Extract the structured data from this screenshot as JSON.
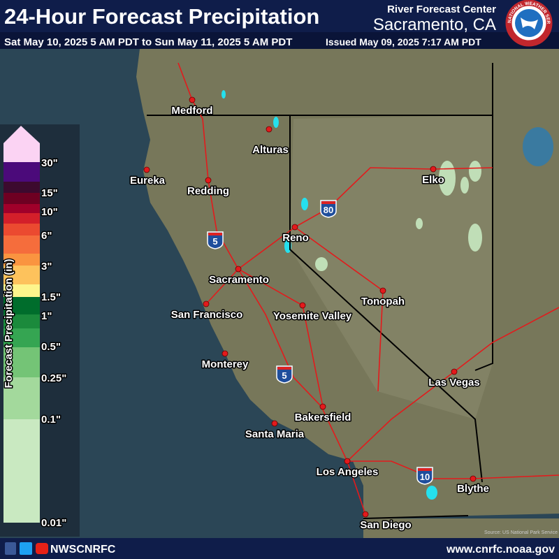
{
  "header": {
    "title": "24-Hour Forecast Precipitation",
    "period": "Sat May 10, 2025 5 AM PDT to Sun May 11, 2025 5 AM PDT",
    "issued": "Issued May 09, 2025 7:17 AM PDT",
    "office": "River Forecast Center",
    "location": "Sacramento, CA",
    "logo_text": "NATIONAL WEATHER SERVICE"
  },
  "legend": {
    "title": "Forecast Precipitation (in)",
    "labels": [
      "30\"",
      "15\"",
      "10\"",
      "6\"",
      "3\"",
      "1.5\"",
      "1\"",
      "0.5\"",
      "0.25\"",
      "0.1\"",
      "0.01\""
    ],
    "colors": [
      "#fbd3f3",
      "#4b0a7a",
      "#3c0a2e",
      "#6e0022",
      "#a0002a",
      "#d31f2a",
      "#eb4a30",
      "#f56d3c",
      "#fa9440",
      "#fdc25c",
      "#fdf58c",
      "#006d2c",
      "#1b8a3c",
      "#35a552",
      "#74c476",
      "#a3d99c",
      "#c9e9c1"
    ]
  },
  "map": {
    "cities": [
      "Medford",
      "Alturas",
      "Eureka",
      "Redding",
      "Elko",
      "Reno",
      "Sacramento",
      "San Francisco",
      "Yosemite Valley",
      "Tonopah",
      "Monterey",
      "Las Vegas",
      "Bakersfield",
      "Santa Maria",
      "Los Angeles",
      "Blythe",
      "San Diego"
    ],
    "highways": [
      "5",
      "80",
      "5",
      "10"
    ],
    "credit": "Source: US National Park Service"
  },
  "footer": {
    "handle": "NWSCNRFC",
    "url": "www.cnrfc.noaa.gov"
  }
}
